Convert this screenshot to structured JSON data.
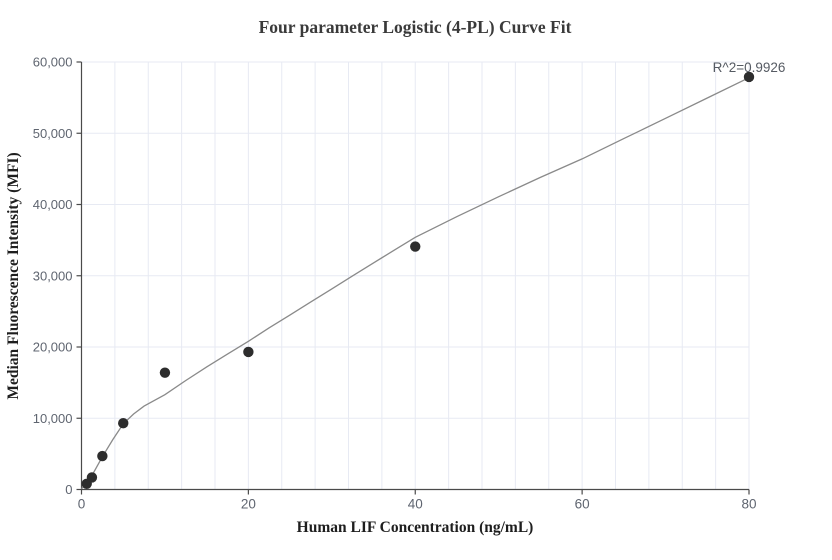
{
  "chart_data": {
    "type": "scatter",
    "title": "Four parameter Logistic (4-PL) Curve Fit",
    "xlabel": "Human LIF Concentration (ng/mL)",
    "ylabel": "Median Fluorescence Intensity (MFI)",
    "annotation": "R^2=0.9926",
    "xlim": [
      0,
      80
    ],
    "ylim": [
      0,
      60000
    ],
    "x_ticks": [
      0,
      20,
      40,
      60,
      80
    ],
    "x_tick_labels": [
      "0",
      "20",
      "40",
      "60",
      "80"
    ],
    "y_ticks": [
      0,
      10000,
      20000,
      30000,
      40000,
      50000,
      60000
    ],
    "y_tick_labels": [
      "0",
      "10,000",
      "20,000",
      "30,000",
      "40,000",
      "50,000",
      "60,000"
    ],
    "grid": true,
    "x_minor_grid_interval": 4,
    "legend": "none",
    "series": [
      {
        "name": "standard-points",
        "type": "points",
        "x": [
          0.625,
          1.25,
          2.5,
          5,
          10,
          20,
          40,
          80
        ],
        "y": [
          800,
          1700,
          4700,
          9300,
          16400,
          19300,
          34100,
          57900
        ]
      },
      {
        "name": "4pl-fit-curve",
        "type": "line",
        "x": [
          0,
          0.625,
          1.25,
          2.5,
          3.75,
          5,
          6.25,
          7.5,
          10,
          12.5,
          15,
          17.5,
          20,
          22.5,
          25,
          27.5,
          30,
          32.5,
          35,
          37.5,
          40,
          45,
          50,
          55,
          60,
          65,
          70,
          75,
          80
        ],
        "y": [
          100,
          1000,
          1950,
          4600,
          7000,
          9200,
          10600,
          11700,
          13300,
          15300,
          17200,
          19000,
          20800,
          22700,
          24500,
          26350,
          28150,
          30000,
          31800,
          33600,
          35400,
          38300,
          41100,
          43800,
          46400,
          49250,
          52100,
          54950,
          57800
        ]
      }
    ],
    "colors": {
      "point": "#2d2d2d",
      "curve": "#8a8a8a",
      "grid": "#e7eaf3",
      "axis": "#4a4a4a",
      "tick_label": "#5f6570",
      "annotation": "#565b63"
    }
  }
}
